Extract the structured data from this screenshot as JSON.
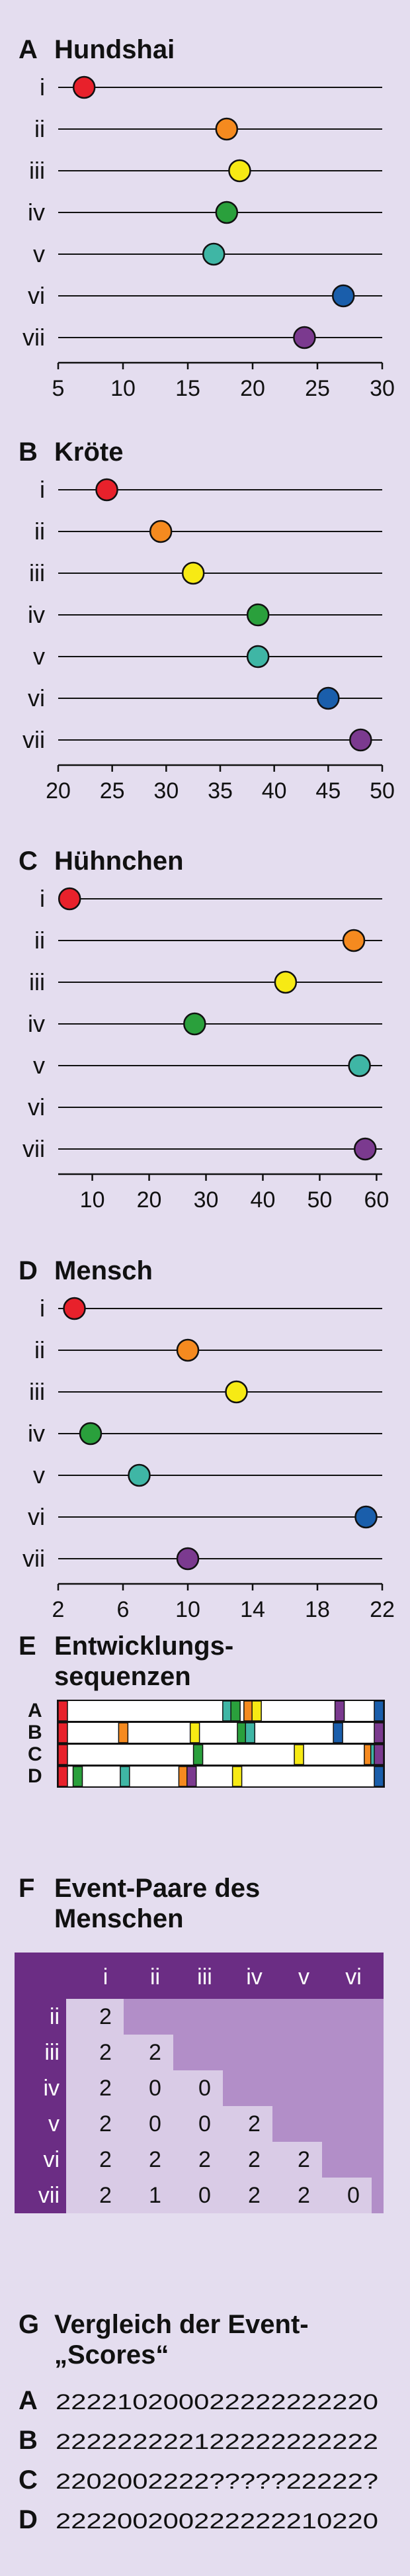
{
  "colors": {
    "background": "#e4ddef",
    "i": "#e8212b",
    "ii": "#f58a1f",
    "iii": "#f7ea14",
    "iv": "#2aa03c",
    "v": "#3fb6a5",
    "vi": "#1a5eab",
    "vii": "#7b3a8f",
    "table_header": "#6b2d84",
    "table_light": "#d9cbe6",
    "table_mid": "#b28ec8"
  },
  "row_labels": [
    "i",
    "ii",
    "iii",
    "iv",
    "v",
    "vi",
    "vii"
  ],
  "charts": [
    {
      "letter": "A",
      "title": "Hundshai",
      "xlim": [
        5,
        30
      ],
      "ticks": [
        "5",
        "10",
        "15",
        "20",
        "25",
        "30"
      ],
      "values": [
        7,
        18,
        19,
        18,
        17,
        27,
        24
      ]
    },
    {
      "letter": "B",
      "title": "Kröte",
      "xlim": [
        20,
        50
      ],
      "ticks": [
        "20",
        "25",
        "30",
        "35",
        "40",
        "45",
        "50"
      ],
      "values": [
        24.5,
        29.5,
        32.5,
        38.5,
        38.5,
        45,
        48
      ]
    },
    {
      "letter": "C",
      "title": "Hühnchen",
      "xlim": [
        4,
        61
      ],
      "ticks": [
        "10",
        "20",
        "30",
        "40",
        "50",
        "60"
      ],
      "values": [
        6,
        56,
        44,
        28,
        57,
        null,
        58
      ]
    },
    {
      "letter": "D",
      "title": "Mensch",
      "xlim": [
        2,
        22
      ],
      "ticks": [
        "2",
        "6",
        "10",
        "14",
        "18",
        "22"
      ],
      "values": [
        3,
        10,
        13,
        4,
        7,
        21,
        10
      ]
    }
  ],
  "chart_data": [
    {
      "type": "scatter",
      "title": "Hundshai",
      "categories": [
        "i",
        "ii",
        "iii",
        "iv",
        "v",
        "vi",
        "vii"
      ],
      "values": [
        7,
        18,
        19,
        18,
        17,
        27,
        24
      ],
      "xlim": [
        5,
        30
      ]
    },
    {
      "type": "scatter",
      "title": "Kröte",
      "categories": [
        "i",
        "ii",
        "iii",
        "iv",
        "v",
        "vi",
        "vii"
      ],
      "values": [
        24.5,
        29.5,
        32.5,
        38.5,
        38.5,
        45,
        48
      ],
      "xlim": [
        20,
        50
      ]
    },
    {
      "type": "scatter",
      "title": "Hühnchen",
      "categories": [
        "i",
        "ii",
        "iii",
        "iv",
        "v",
        "vi",
        "vii"
      ],
      "values": [
        6,
        56,
        44,
        28,
        57,
        null,
        58
      ],
      "xlim": [
        4,
        61
      ]
    },
    {
      "type": "scatter",
      "title": "Mensch",
      "categories": [
        "i",
        "ii",
        "iii",
        "iv",
        "v",
        "vi",
        "vii"
      ],
      "values": [
        3,
        10,
        13,
        4,
        7,
        21,
        10
      ],
      "xlim": [
        2,
        22
      ]
    }
  ],
  "section_e": {
    "letter": "E",
    "title_line1": "Entwicklungs-",
    "title_line2": "sequenzen",
    "rows": [
      {
        "label": "A",
        "marks": [
          {
            "pos": 0.005,
            "c": "i"
          },
          {
            "pos": 0.52,
            "c": "v"
          },
          {
            "pos": 0.545,
            "c": "iv"
          },
          {
            "pos": 0.585,
            "c": "ii"
          },
          {
            "pos": 0.61,
            "c": "iii"
          },
          {
            "pos": 0.865,
            "c": "vii"
          },
          {
            "pos": 0.99,
            "c": "vi"
          }
        ]
      },
      {
        "label": "B",
        "marks": [
          {
            "pos": 0.005,
            "c": "i"
          },
          {
            "pos": 0.2,
            "c": "ii"
          },
          {
            "pos": 0.42,
            "c": "iii"
          },
          {
            "pos": 0.565,
            "c": "iv"
          },
          {
            "pos": 0.59,
            "c": "v"
          },
          {
            "pos": 0.86,
            "c": "vi"
          },
          {
            "pos": 0.99,
            "c": "vii"
          }
        ]
      },
      {
        "label": "C",
        "marks": [
          {
            "pos": 0.005,
            "c": "i"
          },
          {
            "pos": 0.43,
            "c": "iv"
          },
          {
            "pos": 0.74,
            "c": "iii"
          },
          {
            "pos": 0.955,
            "c": "ii"
          },
          {
            "pos": 0.975,
            "c": "v"
          },
          {
            "pos": 0.99,
            "c": "vii"
          }
        ]
      },
      {
        "label": "D",
        "marks": [
          {
            "pos": 0.005,
            "c": "i"
          },
          {
            "pos": 0.06,
            "c": "iv"
          },
          {
            "pos": 0.205,
            "c": "v"
          },
          {
            "pos": 0.385,
            "c": "ii"
          },
          {
            "pos": 0.41,
            "c": "vii"
          },
          {
            "pos": 0.55,
            "c": "iii"
          },
          {
            "pos": 0.99,
            "c": "vi"
          }
        ]
      }
    ]
  },
  "section_f": {
    "letter": "F",
    "title_line1": "Event-Paare des",
    "title_line2": "Menschen",
    "col_headers": [
      "i",
      "ii",
      "iii",
      "iv",
      "v",
      "vi"
    ],
    "rows": [
      {
        "label": "ii",
        "values": [
          "2"
        ]
      },
      {
        "label": "iii",
        "values": [
          "2",
          "2"
        ]
      },
      {
        "label": "iv",
        "values": [
          "2",
          "0",
          "0"
        ]
      },
      {
        "label": "v",
        "values": [
          "2",
          "0",
          "0",
          "2"
        ]
      },
      {
        "label": "vi",
        "values": [
          "2",
          "2",
          "2",
          "2",
          "2"
        ]
      },
      {
        "label": "vii",
        "values": [
          "2",
          "1",
          "0",
          "2",
          "2",
          "0"
        ]
      }
    ]
  },
  "section_g": {
    "letter": "G",
    "title_line1": "Vergleich der Event-",
    "title_line2": "„Scores“",
    "rows": [
      {
        "label": "A",
        "score": "222210200022222222220"
      },
      {
        "label": "B",
        "score": "222222222122222222222"
      },
      {
        "label": "C",
        "score": "2202002222?????22222?"
      },
      {
        "label": "D",
        "score": "222200200222222210220"
      }
    ]
  }
}
